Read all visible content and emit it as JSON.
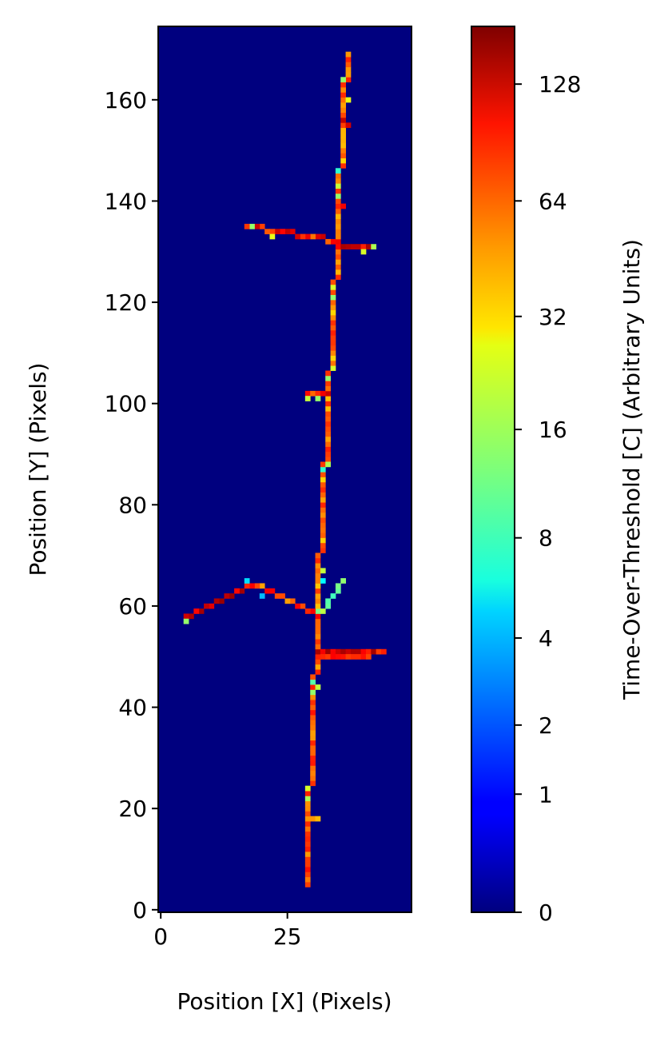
{
  "chart_data": {
    "type": "heatmap",
    "title": "",
    "xlabel": "Position [X] (Pixels)",
    "ylabel": "Position [Y] (Pixels)",
    "xlim": [
      -0.5,
      49.5
    ],
    "ylim": [
      -0.5,
      174.5
    ],
    "xticks": [
      0,
      25
    ],
    "yticks": [
      0,
      20,
      40,
      60,
      80,
      100,
      120,
      140,
      160
    ],
    "background_value": 0,
    "colormap": "jet",
    "colorbar": {
      "label": "Time-Over-Threshold [C] (Arbitrary Units)",
      "ticks": [
        0,
        1,
        2,
        4,
        8,
        16,
        32,
        64,
        128
      ],
      "max": 180
    },
    "tracks": [
      {
        "name": "main-track-lower",
        "points": [
          [
            29,
            5
          ],
          [
            29,
            24
          ],
          [
            30,
            25
          ],
          [
            30,
            46
          ],
          [
            31,
            47
          ],
          [
            31,
            70
          ]
        ],
        "value": 60
      },
      {
        "name": "main-track-middle",
        "points": [
          [
            31,
            70
          ],
          [
            32,
            71
          ],
          [
            32,
            88
          ],
          [
            33,
            89
          ],
          [
            33,
            106
          ],
          [
            34,
            107
          ],
          [
            34,
            124
          ]
        ],
        "value": 55
      },
      {
        "name": "main-track-upper",
        "points": [
          [
            34,
            124
          ],
          [
            35,
            125
          ],
          [
            35,
            146
          ],
          [
            36,
            147
          ],
          [
            36,
            163
          ],
          [
            37,
            164
          ],
          [
            37,
            169
          ]
        ],
        "value": 55
      },
      {
        "name": "branch-right-y51",
        "points": [
          [
            31,
            51
          ],
          [
            44,
            51
          ]
        ],
        "value": 120
      },
      {
        "name": "branch-right-y50",
        "points": [
          [
            31,
            50
          ],
          [
            41,
            50
          ]
        ],
        "value": 80
      },
      {
        "name": "branch-left-chevron-a",
        "points": [
          [
            31,
            58
          ],
          [
            19,
            64
          ]
        ],
        "value": 70
      },
      {
        "name": "branch-left-chevron-b",
        "points": [
          [
            18,
            64
          ],
          [
            5,
            58
          ]
        ],
        "value": 110
      },
      {
        "name": "branch-upper-left",
        "points": [
          [
            35,
            132
          ],
          [
            17,
            135
          ]
        ],
        "value": 90
      },
      {
        "name": "branch-upper-right",
        "points": [
          [
            35,
            131
          ],
          [
            42,
            131
          ]
        ],
        "value": 110
      },
      {
        "name": "branch-small-right",
        "points": [
          [
            32,
            59
          ],
          [
            36,
            65
          ]
        ],
        "value": 14
      },
      {
        "name": "spur-y102",
        "points": [
          [
            29,
            102
          ],
          [
            33,
            102
          ]
        ],
        "value": 90
      },
      {
        "name": "spur-y18",
        "points": [
          [
            30,
            18
          ],
          [
            31,
            18
          ]
        ],
        "value": 60
      }
    ],
    "hotspots": [
      {
        "x": 29,
        "y": 22,
        "value": 16
      },
      {
        "x": 29,
        "y": 24,
        "value": 20
      },
      {
        "x": 30,
        "y": 43,
        "value": 14
      },
      {
        "x": 30,
        "y": 45,
        "value": 10
      },
      {
        "x": 31,
        "y": 44,
        "value": 18
      },
      {
        "x": 31,
        "y": 59,
        "value": 12
      },
      {
        "x": 32,
        "y": 65,
        "value": 6
      },
      {
        "x": 32,
        "y": 67,
        "value": 18
      },
      {
        "x": 32,
        "y": 87,
        "value": 8
      },
      {
        "x": 33,
        "y": 88,
        "value": 16
      },
      {
        "x": 33,
        "y": 105,
        "value": 14
      },
      {
        "x": 34,
        "y": 107,
        "value": 20
      },
      {
        "x": 34,
        "y": 121,
        "value": 14
      },
      {
        "x": 34,
        "y": 123,
        "value": 20
      },
      {
        "x": 35,
        "y": 141,
        "value": 14
      },
      {
        "x": 35,
        "y": 143,
        "value": 18
      },
      {
        "x": 35,
        "y": 146,
        "value": 8
      },
      {
        "x": 36,
        "y": 139,
        "value": 100
      },
      {
        "x": 36,
        "y": 156,
        "value": 130
      },
      {
        "x": 37,
        "y": 155,
        "value": 120
      },
      {
        "x": 36,
        "y": 164,
        "value": 14
      },
      {
        "x": 37,
        "y": 160,
        "value": 22
      },
      {
        "x": 17,
        "y": 65,
        "value": 5
      },
      {
        "x": 20,
        "y": 62,
        "value": 4
      },
      {
        "x": 18,
        "y": 135,
        "value": 14
      },
      {
        "x": 22,
        "y": 133,
        "value": 22
      },
      {
        "x": 40,
        "y": 130,
        "value": 20
      },
      {
        "x": 42,
        "y": 131,
        "value": 16
      },
      {
        "x": 5,
        "y": 57,
        "value": 14
      },
      {
        "x": 29,
        "y": 101,
        "value": 18
      },
      {
        "x": 31,
        "y": 101,
        "value": 14
      }
    ]
  }
}
